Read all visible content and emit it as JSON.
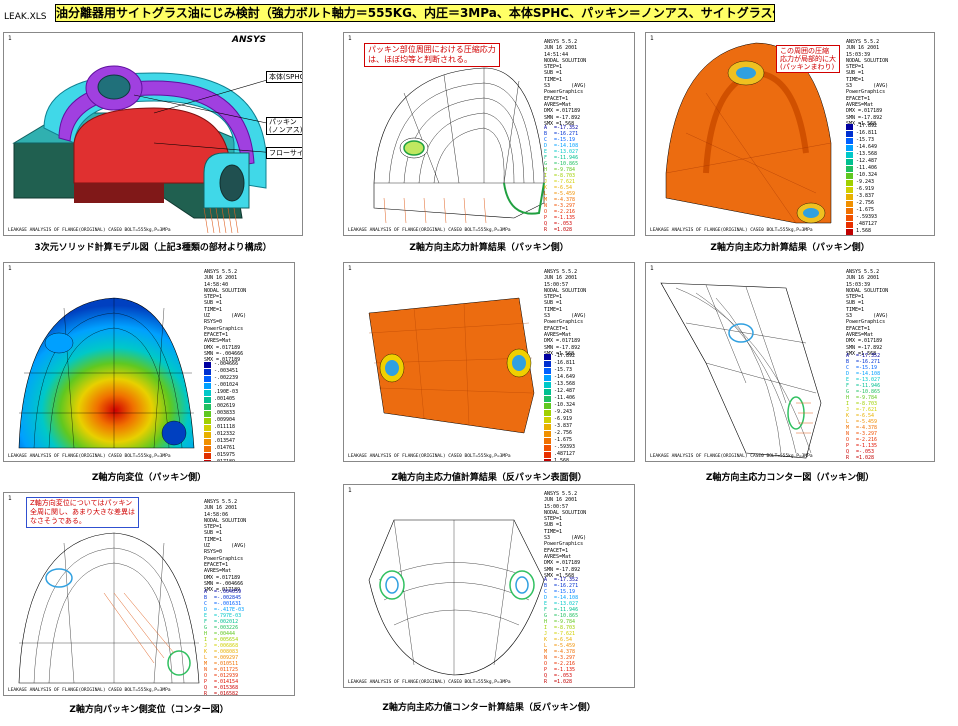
{
  "file_label": "LEAK.XLS",
  "title": "油分離器用サイトグラス油にじみ検討（強力ボルト軸力＝555KG、内圧＝3MPa、本体SPHC、パッキン＝ノンアス、サイトグラス付）",
  "common": {
    "footer": "LEAKAGE ANALYSIS OF FLANGE(ORIGINAL)     CASE0  BOLT=555kg,P=3MPa",
    "panel_number": "1",
    "ansys_logo": "ANSYS"
  },
  "panels": [
    {
      "id": "model",
      "caption": "3次元ソリッド計算モデル図（上記3種類の部材より構成）",
      "callouts": [
        "本体(SPHC)",
        "パッキン\n(ノンアス)",
        "フローサイト"
      ]
    },
    {
      "id": "z-stress-packing",
      "caption": "Z軸方向主応力計算結果（パッキン側）",
      "header": "ANSYS 5.5.2\nJUN 16 2001\n14:51:44\nNODAL SOLUTION\nSTEP=1\nSUB =1\nTIME=1\nS3       (AVG)\nPowerGraphics\nEFACET=1\nAVRES=Mat\nDMX =.017189\nSMN =-17.892\nSMX =1.568",
      "note": "パッキン部位周囲における圧縮応力\nは、ほぼ均等と判断される。",
      "legend_letters": [
        {
          "l": "A",
          "v": "=-17.352",
          "c": "#0000a0"
        },
        {
          "l": "B",
          "v": "=-16.271",
          "c": "#0030d0"
        },
        {
          "l": "C",
          "v": "=-15.19",
          "c": "#0060ff"
        },
        {
          "l": "D",
          "v": "=-14.108",
          "c": "#00a0ff"
        },
        {
          "l": "E",
          "v": "=-13.027",
          "c": "#00c8c8"
        },
        {
          "l": "F",
          "v": "=-11.946",
          "c": "#00c090"
        },
        {
          "l": "G",
          "v": "=-10.865",
          "c": "#20c060"
        },
        {
          "l": "H",
          "v": "=-9.784",
          "c": "#60c820"
        },
        {
          "l": "I",
          "v": "=-8.703",
          "c": "#a0d000"
        },
        {
          "l": "J",
          "v": "=-7.621",
          "c": "#d0d000"
        },
        {
          "l": "K",
          "v": "=-6.54",
          "c": "#e8b000"
        },
        {
          "l": "L",
          "v": "=-5.459",
          "c": "#f09000"
        },
        {
          "l": "M",
          "v": "=-4.378",
          "c": "#f07000"
        },
        {
          "l": "N",
          "v": "=-3.297",
          "c": "#f05000"
        },
        {
          "l": "O",
          "v": "=-2.216",
          "c": "#e83000"
        },
        {
          "l": "P",
          "v": "=-1.135",
          "c": "#e01000"
        },
        {
          "l": "Q",
          "v": "=-.053",
          "c": "#d00000"
        },
        {
          "l": "R",
          "v": "=1.028",
          "c": "#c00000"
        }
      ]
    },
    {
      "id": "z-stress-packing-2",
      "caption": "Z軸方向主応力計算結果（パッキン側）",
      "header": "ANSYS 5.5.2\nJUN 16 2001\n15:03:39\nNODAL SOLUTION\nSTEP=1\nSUB =1\nTIME=1\nS3       (AVG)\nPowerGraphics\nEFACET=1\nAVRES=Mat\nDMX =.017189\nSMN =-17.892\nSMX =1.568",
      "note": "この周囲の圧縮\n応力が局部的に大\n(パッキンまわり)",
      "legend": [
        {
          "v": "-17.892",
          "c": "#0000a0"
        },
        {
          "v": "-16.811",
          "c": "#0030d0"
        },
        {
          "v": "-15.73",
          "c": "#0060ff"
        },
        {
          "v": "-14.649",
          "c": "#00a0ff"
        },
        {
          "v": "-13.568",
          "c": "#00c8c8"
        },
        {
          "v": "-12.487",
          "c": "#00c090"
        },
        {
          "v": "-11.406",
          "c": "#20c060"
        },
        {
          "v": "-10.324",
          "c": "#60c820"
        },
        {
          "v": "-9.243",
          "c": "#a0d000"
        },
        {
          "v": "-6.919",
          "c": "#d0d000"
        },
        {
          "v": "-3.837",
          "c": "#e8b000"
        },
        {
          "v": "-2.756",
          "c": "#f09000"
        },
        {
          "v": "-1.675",
          "c": "#f07000"
        },
        {
          "v": "-.59393",
          "c": "#f05000"
        },
        {
          "v": ".487127",
          "c": "#e83000"
        },
        {
          "v": "1.568",
          "c": "#c00000"
        }
      ]
    },
    {
      "id": "z-displacement",
      "caption": "Z軸方向変位（パッキン側）",
      "header": "ANSYS 5.5.2\nJUN 16 2001\n14:58:40\nNODAL SOLUTION\nSTEP=1\nSUB =1\nTIME=1\nUZ       (AVG)\nRSYS=0\nPowerGraphics\nEFACET=1\nAVRES=Mat\nDMX =.017189\nSMN =-.004666\nSMX =.017189",
      "legend": [
        {
          "v": "-.004666",
          "c": "#0000a0"
        },
        {
          "v": "-.003451",
          "c": "#0030d0"
        },
        {
          "v": "-.002239",
          "c": "#0060ff"
        },
        {
          "v": "-.001024",
          "c": "#00a0ff"
        },
        {
          "v": ".190E-03",
          "c": "#00c8c8"
        },
        {
          "v": ".001405",
          "c": "#00c090"
        },
        {
          "v": ".002619",
          "c": "#20c060"
        },
        {
          "v": ".003833",
          "c": "#60c820"
        },
        {
          "v": ".009904",
          "c": "#a0d000"
        },
        {
          "v": ".011118",
          "c": "#d0d000"
        },
        {
          "v": ".012332",
          "c": "#e8b000"
        },
        {
          "v": ".013547",
          "c": "#f09000"
        },
        {
          "v": ".014761",
          "c": "#f07000"
        },
        {
          "v": ".015975",
          "c": "#e03000"
        },
        {
          "v": ".017189",
          "c": "#c00000"
        }
      ]
    },
    {
      "id": "z-stress-opposite",
      "caption": "Z軸方向主応力値計算結果（反パッキン表面側）",
      "header": "ANSYS 5.5.2\nJUN 16 2001\n15:00:57\nNODAL SOLUTION\nSTEP=1\nSUB =1\nTIME=1\nS3       (AVG)\nPowerGraphics\nEFACET=1\nAVRES=Mat\nDMX =.017189\nSMN =-17.892\nSMX =1.568",
      "legend": [
        {
          "v": "-17.892",
          "c": "#0000a0"
        },
        {
          "v": "-16.811",
          "c": "#0030d0"
        },
        {
          "v": "-15.73",
          "c": "#0060ff"
        },
        {
          "v": "-14.649",
          "c": "#00a0ff"
        },
        {
          "v": "-13.568",
          "c": "#00c8c8"
        },
        {
          "v": "-12.487",
          "c": "#00c090"
        },
        {
          "v": "-11.406",
          "c": "#20c060"
        },
        {
          "v": "-10.324",
          "c": "#60c820"
        },
        {
          "v": "-9.243",
          "c": "#a0d000"
        },
        {
          "v": "-6.919",
          "c": "#d0d000"
        },
        {
          "v": "-3.837",
          "c": "#e8b000"
        },
        {
          "v": "-2.756",
          "c": "#f09000"
        },
        {
          "v": "-1.675",
          "c": "#f07000"
        },
        {
          "v": "-.59393",
          "c": "#f05000"
        },
        {
          "v": ".487127",
          "c": "#e83000"
        },
        {
          "v": "1.568",
          "c": "#c00000"
        }
      ]
    },
    {
      "id": "z-contour-packing",
      "caption": "Z軸方向主応力コンター図（パッキン側）",
      "header": "ANSYS 5.5.2\nJUN 16 2001\n15:03:39\nNODAL SOLUTION\nSTEP=1\nSUB =1\nTIME=1\nS3       (AVG)\nPowerGraphics\nEFACET=1\nAVRES=Mat\nDMX =.017189\nSMN =-17.892\nSMX =1.568",
      "legend_letters": [
        {
          "l": "A",
          "v": "=-17.352",
          "c": "#0000a0"
        },
        {
          "l": "B",
          "v": "=-16.271",
          "c": "#0030d0"
        },
        {
          "l": "C",
          "v": "=-15.19",
          "c": "#0060ff"
        },
        {
          "l": "D",
          "v": "=-14.108",
          "c": "#00a0ff"
        },
        {
          "l": "E",
          "v": "=-13.027",
          "c": "#00c8c8"
        },
        {
          "l": "F",
          "v": "=-11.946",
          "c": "#00c090"
        },
        {
          "l": "G",
          "v": "=-10.865",
          "c": "#20c060"
        },
        {
          "l": "H",
          "v": "=-9.784",
          "c": "#60c820"
        },
        {
          "l": "I",
          "v": "=-8.703",
          "c": "#a0d000"
        },
        {
          "l": "J",
          "v": "=-7.621",
          "c": "#d0d000"
        },
        {
          "l": "K",
          "v": "=-6.54",
          "c": "#e8b000"
        },
        {
          "l": "L",
          "v": "=-5.459",
          "c": "#f09000"
        },
        {
          "l": "M",
          "v": "=-4.378",
          "c": "#f07000"
        },
        {
          "l": "N",
          "v": "=-3.297",
          "c": "#f05000"
        },
        {
          "l": "O",
          "v": "=-2.216",
          "c": "#e83000"
        },
        {
          "l": "P",
          "v": "=-1.135",
          "c": "#e01000"
        },
        {
          "l": "Q",
          "v": "=-.053",
          "c": "#d00000"
        },
        {
          "l": "R",
          "v": "=1.028",
          "c": "#c00000"
        }
      ]
    },
    {
      "id": "z-disp-contour",
      "caption": "Z軸方向パッキン側変位（コンター図）",
      "header": "ANSYS 5.5.2\nJUN 16 2001\n14:58:06\nNODAL SOLUTION\nSTEP=1\nSUB =1\nTIME=1\nUZ       (AVG)\nRSYS=0\nPowerGraphics\nEFACET=1\nAVRES=Mat\nDMX =.017189\nSMN =-.004666\nSMX =.017189",
      "note": "Z軸方向変位についてはパッキン\n全周に関し、あまり大きな差異は\nなさそうである。",
      "legend_letters": [
        {
          "l": "A",
          "v": "=-.004059",
          "c": "#0000a0"
        },
        {
          "l": "B",
          "v": "=-.002845",
          "c": "#0030d0"
        },
        {
          "l": "C",
          "v": "=-.001631",
          "c": "#0060ff"
        },
        {
          "l": "D",
          "v": "=-.417E-03",
          "c": "#00a0ff"
        },
        {
          "l": "E",
          "v": "=.797E-03",
          "c": "#00c8c8"
        },
        {
          "l": "F",
          "v": "=.002012",
          "c": "#00c090"
        },
        {
          "l": "G",
          "v": "=.003226",
          "c": "#20c060"
        },
        {
          "l": "H",
          "v": "=.00444",
          "c": "#60c820"
        },
        {
          "l": "I",
          "v": "=.005654",
          "c": "#a0d000"
        },
        {
          "l": "J",
          "v": "=.006868",
          "c": "#d0d000"
        },
        {
          "l": "K",
          "v": "=.008083",
          "c": "#e8b000"
        },
        {
          "l": "L",
          "v": "=.009297",
          "c": "#f09000"
        },
        {
          "l": "M",
          "v": "=.010511",
          "c": "#f07000"
        },
        {
          "l": "N",
          "v": "=.011725",
          "c": "#f05000"
        },
        {
          "l": "O",
          "v": "=.012939",
          "c": "#e83000"
        },
        {
          "l": "P",
          "v": "=.014154",
          "c": "#e01000"
        },
        {
          "l": "Q",
          "v": "=.015368",
          "c": "#d00000"
        },
        {
          "l": "R",
          "v": "=.016582",
          "c": "#c00000"
        }
      ]
    },
    {
      "id": "z-contour-opposite",
      "caption": "Z軸方向主応力値コンター計算結果（反パッキン側）",
      "header": "ANSYS 5.5.2\nJUN 16 2001\n15:00:57\nNODAL SOLUTION\nSTEP=1\nSUB =1\nTIME=1\nS3       (AVG)\nPowerGraphics\nEFACET=1\nAVRES=Mat\nDMX =.017189\nSMN =-17.892\nSMX =1.568",
      "legend_letters": [
        {
          "l": "A",
          "v": "=-17.352",
          "c": "#0000a0"
        },
        {
          "l": "B",
          "v": "=-16.271",
          "c": "#0030d0"
        },
        {
          "l": "C",
          "v": "=-15.19",
          "c": "#0060ff"
        },
        {
          "l": "D",
          "v": "=-14.108",
          "c": "#00a0ff"
        },
        {
          "l": "E",
          "v": "=-13.027",
          "c": "#00c8c8"
        },
        {
          "l": "F",
          "v": "=-11.946",
          "c": "#00c090"
        },
        {
          "l": "G",
          "v": "=-10.865",
          "c": "#20c060"
        },
        {
          "l": "H",
          "v": "=-9.784",
          "c": "#60c820"
        },
        {
          "l": "I",
          "v": "=-8.703",
          "c": "#a0d000"
        },
        {
          "l": "J",
          "v": "=-7.621",
          "c": "#d0d000"
        },
        {
          "l": "K",
          "v": "=-6.54",
          "c": "#e8b000"
        },
        {
          "l": "L",
          "v": "=-5.459",
          "c": "#f09000"
        },
        {
          "l": "M",
          "v": "=-4.378",
          "c": "#f07000"
        },
        {
          "l": "N",
          "v": "=-3.297",
          "c": "#f05000"
        },
        {
          "l": "O",
          "v": "=-2.216",
          "c": "#e83000"
        },
        {
          "l": "P",
          "v": "=-1.135",
          "c": "#e01000"
        },
        {
          "l": "Q",
          "v": "=-.053",
          "c": "#d00000"
        },
        {
          "l": "R",
          "v": "=1.028",
          "c": "#c00000"
        }
      ]
    }
  ]
}
